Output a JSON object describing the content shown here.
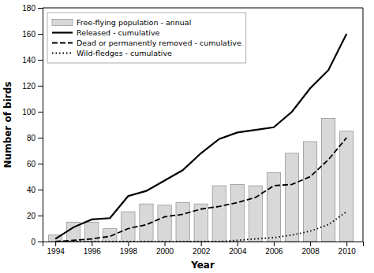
{
  "chart_data": {
    "type": "bar",
    "x": [
      1994,
      1995,
      1996,
      1997,
      1998,
      1999,
      2000,
      2001,
      2002,
      2003,
      2004,
      2005,
      2006,
      2007,
      2008,
      2009,
      2010
    ],
    "series": [
      {
        "name": "Free-flying population - annual",
        "type": "bar",
        "color": "#d8d8d8",
        "values": [
          5,
          15,
          15,
          10,
          23,
          29,
          28,
          30,
          29,
          43,
          44,
          43,
          53,
          68,
          77,
          95,
          85
        ]
      },
      {
        "name": "Released - cumulative",
        "type": "line",
        "color": "black",
        "line_style": "solid",
        "values": [
          2,
          11,
          17,
          18,
          35,
          39,
          47,
          55,
          68,
          79,
          84,
          86,
          88,
          100,
          118,
          132,
          160
        ]
      },
      {
        "name": "Dead or permanently removed - cumulative",
        "type": "line",
        "color": "black",
        "line_style": "dashed",
        "values": [
          0,
          1,
          2,
          4,
          10,
          13,
          19,
          21,
          25,
          27,
          30,
          34,
          43,
          44,
          50,
          63,
          80
        ]
      },
      {
        "name": "Wild-fledges - cumulative",
        "type": "line",
        "color": "black",
        "line_style": "dotted",
        "values": [
          0,
          0,
          0,
          0,
          0,
          0,
          0,
          0,
          0,
          0,
          1,
          2,
          3,
          5,
          8,
          13,
          23
        ]
      }
    ],
    "xlabel": "Year",
    "ylabel": "Number of birds",
    "xlim": [
      1993.3,
      2010.9
    ],
    "xticks": [
      1994,
      1996,
      1998,
      2000,
      2002,
      2004,
      2006,
      2008,
      2010
    ],
    "ylim": [
      0,
      180
    ],
    "yticks": [
      0,
      20,
      40,
      60,
      80,
      100,
      120,
      140,
      160,
      180
    ],
    "grid": false,
    "legend": "upper left"
  }
}
